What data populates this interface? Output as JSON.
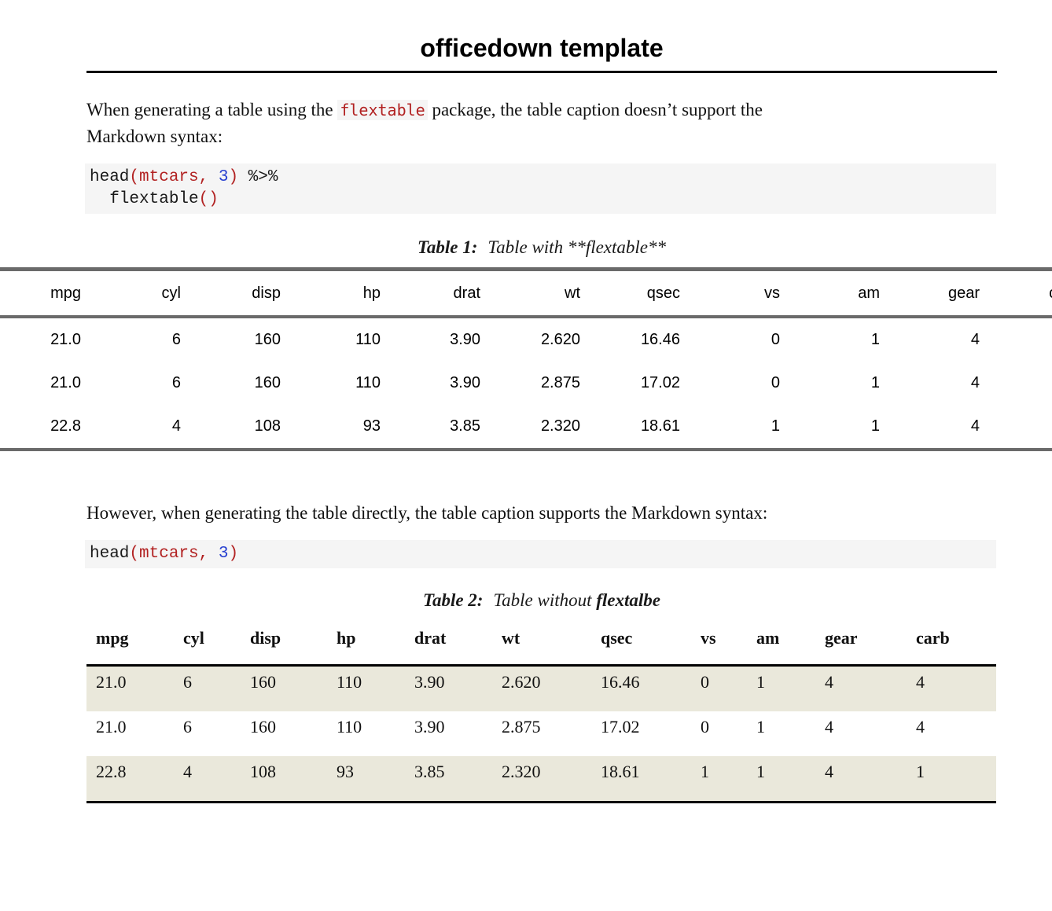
{
  "document": {
    "title": "officedown template"
  },
  "paragraph1": {
    "before": "When generating a table using the ",
    "inline_code": "flextable",
    "after_line1": " package, the table caption doesn’t support the",
    "line2": "Markdown syntax:"
  },
  "code_block1": {
    "line1": {
      "t1": "head",
      "t2": "(mtcars,",
      "t3": " ",
      "t4": "3",
      "t5": ")",
      "t6": " %>%"
    },
    "line2": {
      "t1": "  flextable",
      "t2": "()"
    }
  },
  "paragraph2": {
    "text": "However, when generating the table directly, the table caption supports the Markdown syntax:"
  },
  "code_block2": {
    "line1": {
      "t1": "head",
      "t2": "(mtcars,",
      "t3": " ",
      "t4": "3",
      "t5": ")"
    }
  },
  "table1": {
    "caption_label": "Table 1:",
    "caption_text": "Table with **flextable**",
    "headers": [
      "mpg",
      "cyl",
      "disp",
      "hp",
      "drat",
      "wt",
      "qsec",
      "vs",
      "am",
      "gear",
      "carb"
    ],
    "rows": [
      [
        "21.0",
        "6",
        "160",
        "110",
        "3.90",
        "2.620",
        "16.46",
        "0",
        "1",
        "4",
        ""
      ],
      [
        "21.0",
        "6",
        "160",
        "110",
        "3.90",
        "2.875",
        "17.02",
        "0",
        "1",
        "4",
        ""
      ],
      [
        "22.8",
        "4",
        "108",
        "93",
        "3.85",
        "2.320",
        "18.61",
        "1",
        "1",
        "4",
        ""
      ]
    ]
  },
  "table2": {
    "caption_label": "Table 2:",
    "caption_text_regular": "Table without ",
    "caption_text_bold": "flextalbe",
    "headers": [
      "mpg",
      "cyl",
      "disp",
      "hp",
      "drat",
      "wt",
      "qsec",
      "vs",
      "am",
      "gear",
      "carb"
    ],
    "rows": [
      [
        "21.0",
        "6",
        "160",
        "110",
        "3.90",
        "2.620",
        "16.46",
        "0",
        "1",
        "4",
        "4"
      ],
      [
        "21.0",
        "6",
        "160",
        "110",
        "3.90",
        "2.875",
        "17.02",
        "0",
        "1",
        "4",
        "4"
      ],
      [
        "22.8",
        "4",
        "108",
        "93",
        "3.85",
        "2.320",
        "18.61",
        "1",
        "1",
        "4",
        "1"
      ]
    ]
  },
  "colors": {
    "code_red": "#b22222",
    "code_blue": "#2840d0",
    "code_background": "#f5f5f5",
    "stripe_beige": "#eae8db",
    "flextable_border_gray": "#6a6a6a",
    "rule_black": "#000000"
  }
}
